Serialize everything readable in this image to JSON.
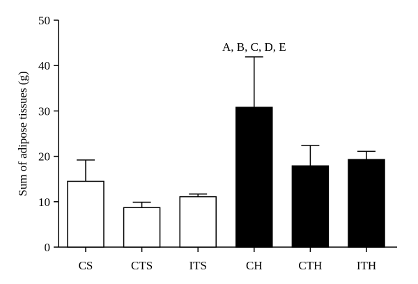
{
  "chart_data": {
    "type": "bar",
    "title": "",
    "xlabel": "",
    "ylabel": "Sum of adipose tissues (g)",
    "ylim": [
      0,
      50
    ],
    "yticks": [
      "0",
      "10",
      "20",
      "30",
      "40",
      "50"
    ],
    "categories": [
      "CS",
      "CTS",
      "ITS",
      "CH",
      "CTH",
      "ITH"
    ],
    "values": [
      14.5,
      8.7,
      11.1,
      30.8,
      17.9,
      19.3
    ],
    "error_upper": [
      19.2,
      9.9,
      11.7,
      41.9,
      22.4,
      21.1
    ],
    "bar_fill": [
      "white",
      "white",
      "white",
      "black",
      "black",
      "black"
    ],
    "annotations": [
      {
        "category": "CH",
        "text": "A, B, C, D, E"
      }
    ],
    "grid": false,
    "legend": "none"
  },
  "colors": {
    "open_bar_fill": "#ffffff",
    "solid_bar_fill": "#000000",
    "stroke": "#000000"
  }
}
